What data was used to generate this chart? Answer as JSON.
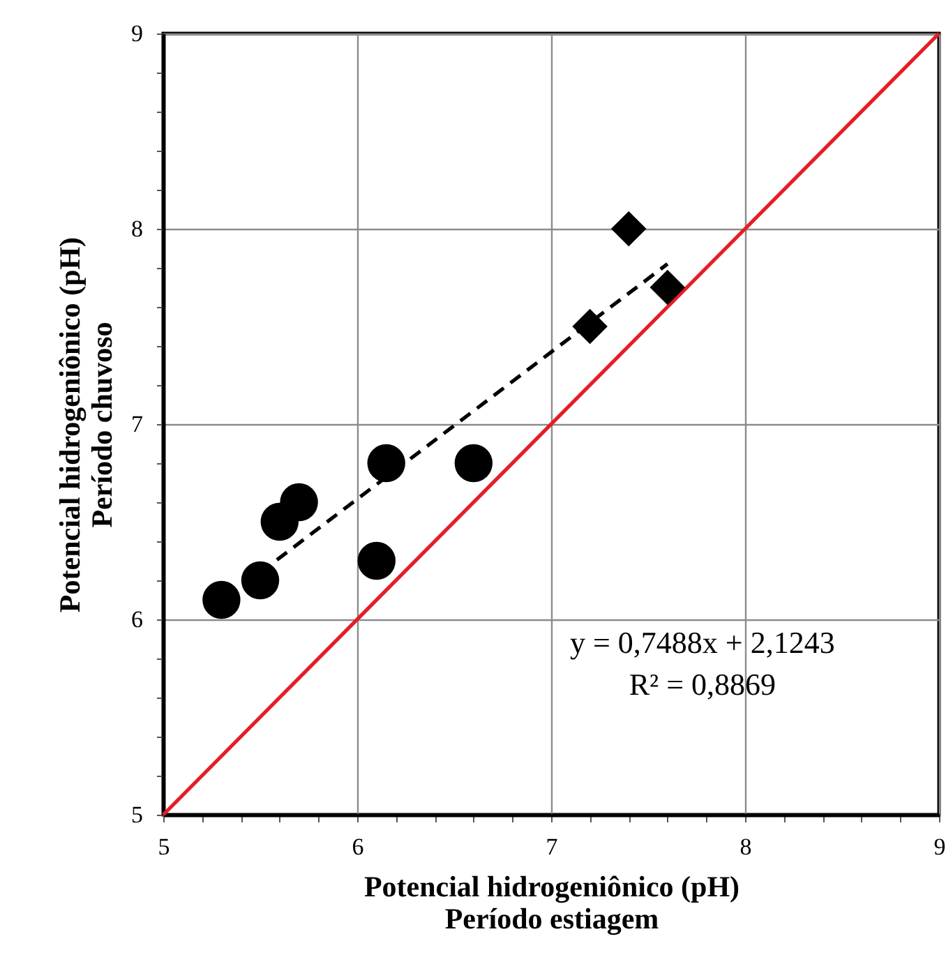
{
  "chart_data": {
    "type": "scatter",
    "xlabel": "Potencial hidrogeniônico (pH)\nPeríodo estiagem",
    "ylabel": "Potencial hidrogeniônico (pH)\nPeríodo chuvoso",
    "xlim": [
      5,
      9
    ],
    "ylim": [
      5,
      9
    ],
    "xticks": [
      5,
      {
        "value": 5.2,
        "label": null
      },
      {
        "value": 5.4,
        "label": null
      },
      {
        "value": 5.6,
        "label": null
      },
      {
        "value": 5.8,
        "label": null
      },
      6,
      {
        "value": 6.2,
        "label": null
      },
      {
        "value": 6.4,
        "label": null
      },
      {
        "value": 6.6,
        "label": null
      },
      {
        "value": 6.8,
        "label": null
      },
      7,
      {
        "value": 7.2,
        "label": null
      },
      {
        "value": 7.4,
        "label": null
      },
      {
        "value": 7.6,
        "label": null
      },
      {
        "value": 7.8,
        "label": null
      },
      8,
      {
        "value": 8.2,
        "label": null
      },
      {
        "value": 8.4,
        "label": null
      },
      {
        "value": 8.6,
        "label": null
      },
      {
        "value": 8.8,
        "label": null
      },
      9
    ],
    "yticks": [
      5,
      {
        "value": 5.2,
        "label": null
      },
      {
        "value": 5.4,
        "label": null
      },
      {
        "value": 5.6,
        "label": null
      },
      {
        "value": 5.8,
        "label": null
      },
      6,
      {
        "value": 6.2,
        "label": null
      },
      {
        "value": 6.4,
        "label": null
      },
      {
        "value": 6.6,
        "label": null
      },
      {
        "value": 6.8,
        "label": null
      },
      7,
      {
        "value": 7.2,
        "label": null
      },
      {
        "value": 7.4,
        "label": null
      },
      {
        "value": 7.6,
        "label": null
      },
      {
        "value": 7.8,
        "label": null
      },
      8,
      {
        "value": 8.2,
        "label": null
      },
      {
        "value": 8.4,
        "label": null
      },
      {
        "value": 8.6,
        "label": null
      },
      {
        "value": 8.8,
        "label": null
      },
      9
    ],
    "grid": true,
    "series": [
      {
        "type": "line",
        "line_style": "solid",
        "marker": "none",
        "color": "#e41e26",
        "x": [
          5,
          9
        ],
        "values": [
          5,
          9
        ]
      },
      {
        "type": "line",
        "line_style": "dashed",
        "marker": "none",
        "color": "#000000",
        "x": [
          5.5,
          7.6
        ],
        "values": [
          6.24,
          7.82
        ]
      },
      {
        "marker": "circle",
        "color": "#000000",
        "x": [
          5.3,
          5.5,
          5.6,
          5.7,
          6.1,
          6.15,
          6.6
        ],
        "values": [
          6.1,
          6.2,
          6.5,
          6.6,
          6.3,
          6.8,
          6.8
        ]
      },
      {
        "marker": "diamond",
        "color": "#000000",
        "x": [
          7.2,
          7.4,
          7.6
        ],
        "values": [
          7.5,
          8.0,
          7.7
        ]
      }
    ],
    "annotations": [
      "y = 0,7488x + 2,1243",
      "R² = 0,8869"
    ]
  }
}
